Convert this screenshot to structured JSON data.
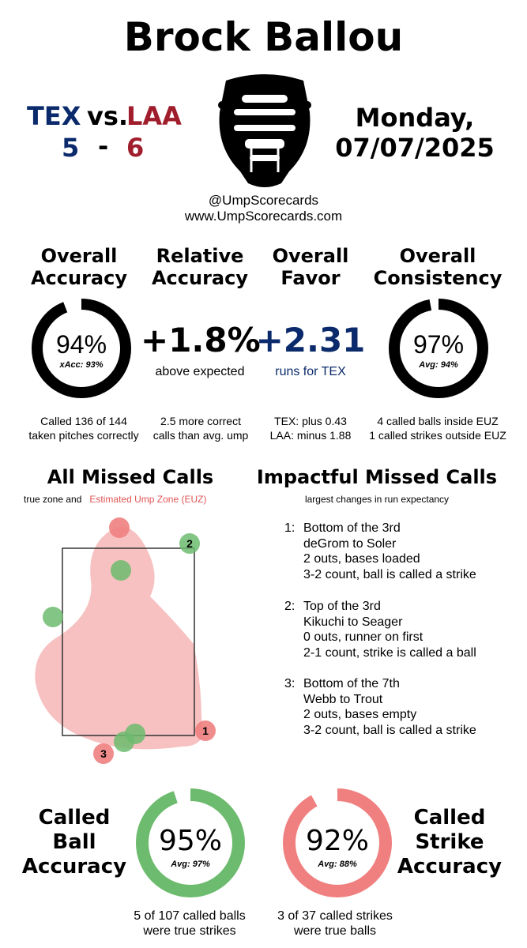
{
  "umpire": "Brock Ballou",
  "game": {
    "away_team": "TEX",
    "vs": "vs.",
    "home_team": "LAA",
    "away_score": "5",
    "dash": "-",
    "home_score": "6",
    "day": "Monday,",
    "date": "07/07/2025"
  },
  "social": {
    "handle": "@UmpScorecards",
    "site": "www.UmpScorecards.com"
  },
  "metrics": {
    "accuracy": {
      "heading1": "Overall",
      "heading2": "Accuracy",
      "value": "94%",
      "sub": "xAcc: 93%",
      "fraction": 0.94,
      "note1": "Called 136 of 144",
      "note2": "taken pitches correctly"
    },
    "relative": {
      "heading1": "Relative",
      "heading2": "Accuracy",
      "value": "+1.8%",
      "sub": "above expected",
      "note1": "2.5 more correct",
      "note2": "calls than avg. ump"
    },
    "favor": {
      "heading1": "Overall",
      "heading2": "Favor",
      "value": "+2.31",
      "sub": "runs for TEX",
      "note1": "TEX: plus 0.43",
      "note2": "LAA: minus 1.88"
    },
    "consistency": {
      "heading1": "Overall",
      "heading2": "Consistency",
      "value": "97%",
      "sub": "Avg: 94%",
      "fraction": 0.97,
      "note1": "4 called balls inside EUZ",
      "note2": "1 called strikes outside EUZ"
    }
  },
  "missed_calls": {
    "heading": "All Missed Calls",
    "legend_prefix": "true zone and",
    "legend_euz": "Estimated Ump Zone (EUZ)",
    "labels": [
      "1",
      "2",
      "3"
    ]
  },
  "impactful": {
    "heading": "Impactful Missed Calls",
    "sub": "largest changes in run expectancy",
    "items": [
      {
        "num": "1:",
        "line1": "Bottom of the 3rd",
        "line2": "deGrom to Soler",
        "line3": "2 outs, bases loaded",
        "line4": "3-2 count, ball is called a strike"
      },
      {
        "num": "2:",
        "line1": "Top of the 3rd",
        "line2": "Kikuchi to Seager",
        "line3": "0 outs, runner on first",
        "line4": "2-1 count, strike is called a ball"
      },
      {
        "num": "3:",
        "line1": "Bottom of the 7th",
        "line2": "Webb to Trout",
        "line3": "2 outs, bases empty",
        "line4": "3-2 count, ball is called a strike"
      }
    ]
  },
  "called_ball": {
    "heading1": "Called",
    "heading2": "Ball",
    "heading3": "Accuracy",
    "value": "95%",
    "sub": "Avg: 97%",
    "fraction": 0.95,
    "note1": "5 of 107 called balls",
    "note2": "were true strikes"
  },
  "called_strike": {
    "heading1": "Called",
    "heading2": "Strike",
    "heading3": "Accuracy",
    "value": "92%",
    "sub": "Avg: 88%",
    "fraction": 0.92,
    "note1": "3 of 37 called strikes",
    "note2": "were true balls"
  },
  "colors": {
    "blue": "#0b2a6b",
    "red": "#a01d2c",
    "euz": "#f3a9a9",
    "green": "#6dbb6e",
    "pink": "#f08080"
  }
}
